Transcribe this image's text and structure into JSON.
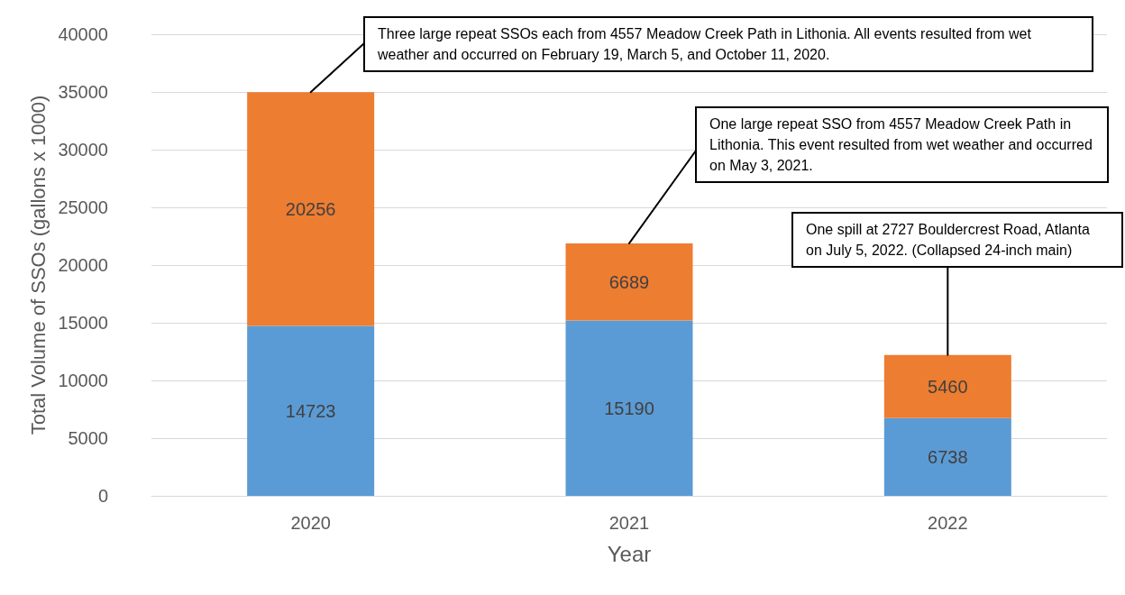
{
  "chart_data": {
    "type": "bar",
    "stacked": true,
    "xlabel": "Year",
    "ylabel": "Total Volume of SSOs (gallons x 1000)",
    "categories": [
      "2020",
      "2021",
      "2022"
    ],
    "series": [
      {
        "color": "#5b9bd5",
        "values": [
          14723,
          15190,
          6738
        ]
      },
      {
        "color": "#ed7d31",
        "values": [
          20256,
          6689,
          5460
        ]
      }
    ],
    "ylim": [
      0,
      40000
    ],
    "yticks": [
      0,
      5000,
      10000,
      15000,
      20000,
      25000,
      30000,
      35000,
      40000
    ],
    "grid": "y",
    "data_labels": true,
    "annotations": [
      {
        "text": "Three large repeat SSOs each from 4557 Meadow Creek Path in Lithonia. All events resulted from wet weather and occurred on February 19, March 5, and October 11, 2020.",
        "x": "2020",
        "y": 34979
      },
      {
        "text": "One large repeat SSO from 4557 Meadow Creek Path in Lithonia. This event resulted from wet weather and occurred on May 3, 2021.",
        "x": "2021",
        "y": 21879
      },
      {
        "text": "One spill at 2727 Bouldercrest Road, Atlanta on July 5, 2022. (Collapsed 24-inch main)",
        "x": "2022",
        "y": 12198
      }
    ]
  }
}
